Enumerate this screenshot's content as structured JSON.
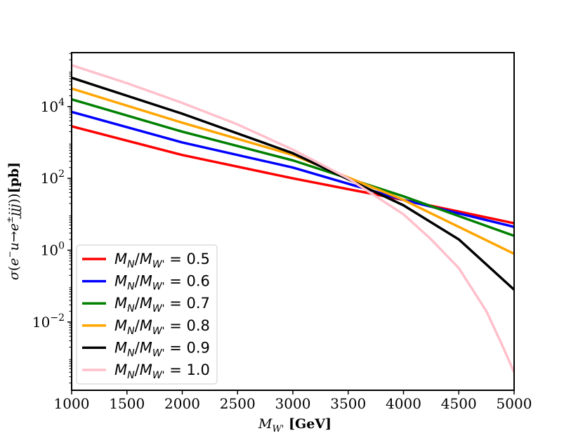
{
  "chart_data": {
    "type": "line",
    "title": "",
    "xlabel": "M_{W'} [GeV]",
    "ylabel": "σ(e⁻u→e±jjj)) [pb]",
    "xlim": [
      1000,
      5000
    ],
    "ylim_log10": [
      -3.9,
      5.5
    ],
    "yscale": "log",
    "grid": false,
    "legend_position": "lower-left",
    "x_ticks": [
      1000,
      1500,
      2000,
      2500,
      3000,
      3500,
      4000,
      4500,
      5000
    ],
    "x_tick_labels": [
      "1000",
      "1500",
      "2000",
      "2500",
      "3000",
      "3500",
      "4000",
      "4500",
      "5000"
    ],
    "y_tick_exponents": [
      -2,
      0,
      2,
      4
    ],
    "y_tick_labels": [
      "10",
      "10",
      "10",
      "10"
    ],
    "y_tick_superscripts": [
      "−2",
      "0",
      "2",
      "4"
    ],
    "series": [
      {
        "name": "M_N/M_{W'} = 0.5",
        "ratio": "0.5",
        "color": "#ff0000",
        "x": [
          1000,
          2000,
          3000,
          4000,
          5000
        ],
        "log10_y": [
          3.45,
          2.65,
          2.0,
          1.4,
          0.75
        ]
      },
      {
        "name": "M_N/M_{W'} = 0.6",
        "ratio": "0.6",
        "color": "#0000ff",
        "x": [
          1000,
          2000,
          3000,
          4000,
          5000
        ],
        "log10_y": [
          3.85,
          3.0,
          2.3,
          1.4,
          0.65
        ]
      },
      {
        "name": "M_N/M_{W'} = 0.7",
        "ratio": "0.7",
        "color": "#008000",
        "x": [
          1000,
          2000,
          3000,
          4000,
          5000
        ],
        "log10_y": [
          4.2,
          3.3,
          2.5,
          1.5,
          0.4
        ]
      },
      {
        "name": "M_N/M_{W'} = 0.8",
        "ratio": "0.8",
        "color": "#ffa500",
        "x": [
          1000,
          2000,
          3000,
          4000,
          5000
        ],
        "log10_y": [
          4.5,
          3.55,
          2.65,
          1.4,
          -0.1
        ]
      },
      {
        "name": "M_N/M_{W'} = 0.9",
        "ratio": "0.9",
        "color": "#000000",
        "x": [
          1000,
          2000,
          3000,
          4000,
          4500,
          5000
        ],
        "log10_y": [
          4.8,
          3.8,
          2.7,
          1.25,
          0.3,
          -1.1
        ]
      },
      {
        "name": "M_N/M_{W'} = 1.0",
        "ratio": "1.0",
        "color": "#ffc0cb",
        "x": [
          1000,
          1500,
          2000,
          2500,
          3000,
          3500,
          4000,
          4250,
          4500,
          4750,
          4900,
          5000
        ],
        "log10_y": [
          5.15,
          4.65,
          4.1,
          3.5,
          2.8,
          2.0,
          1.0,
          0.3,
          -0.5,
          -1.7,
          -2.7,
          -3.4
        ]
      }
    ]
  }
}
